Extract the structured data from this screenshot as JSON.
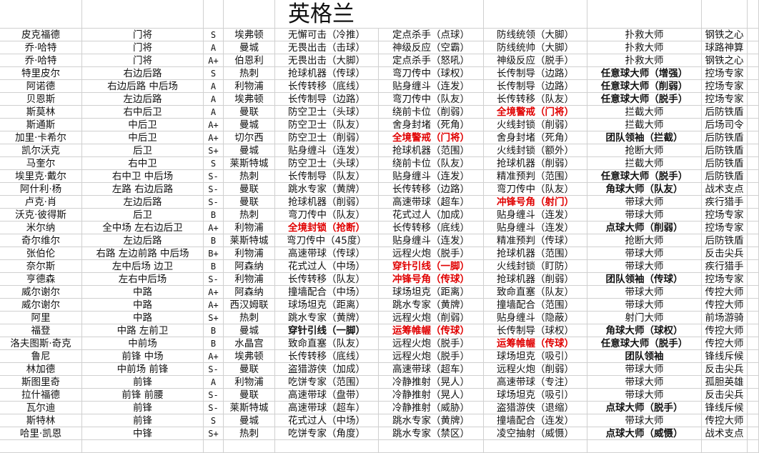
{
  "title": "英格兰",
  "colors": {
    "highlight_red": "#e00000",
    "grid": "#d0d0d0"
  },
  "rows": [
    {
      "name": "皮克福德",
      "position": "门将",
      "grade": "S",
      "club": "埃弗顿",
      "skills": [
        {
          "text": "无懈可击（冷推）",
          "style": ""
        },
        {
          "text": "定点杀手（点球）",
          "style": ""
        },
        {
          "text": "防线统领（大脚）",
          "style": ""
        },
        {
          "text": "扑救大师",
          "style": ""
        }
      ],
      "role": "钢铁之心"
    },
    {
      "name": "乔·哈特",
      "position": "门将",
      "grade": "A",
      "club": "曼城",
      "skills": [
        {
          "text": "无畏出击（击球）",
          "style": ""
        },
        {
          "text": "神级反应（空霸）",
          "style": ""
        },
        {
          "text": "防线统帅（大脚）",
          "style": ""
        },
        {
          "text": "扑救大师",
          "style": ""
        }
      ],
      "role": "球路神算"
    },
    {
      "name": "乔·哈特",
      "position": "门将",
      "grade": "A+",
      "club": "伯恩利",
      "skills": [
        {
          "text": "无畏出击（大脚）",
          "style": ""
        },
        {
          "text": "定点杀手（怒吼）",
          "style": ""
        },
        {
          "text": "神级反应（脱手）",
          "style": ""
        },
        {
          "text": "扑救大师",
          "style": ""
        }
      ],
      "role": "钢铁之心"
    },
    {
      "name": "特里皮尔",
      "position": "右边后路",
      "grade": "S",
      "club": "热刺",
      "skills": [
        {
          "text": "抢球机器（传球）",
          "style": ""
        },
        {
          "text": "弯刀传中（球权）",
          "style": ""
        },
        {
          "text": "长传制导（边路）",
          "style": ""
        },
        {
          "text": "任意球大师（增强）",
          "style": "b"
        }
      ],
      "role": "控场专家"
    },
    {
      "name": "阿诺德",
      "position": "右边后路 中后场",
      "grade": "A",
      "club": "利物浦",
      "skills": [
        {
          "text": "长传转移（底线）",
          "style": ""
        },
        {
          "text": "贴身缠斗（连发）",
          "style": ""
        },
        {
          "text": "长传制导（边路）",
          "style": ""
        },
        {
          "text": "任意球大师（削弱）",
          "style": "b"
        }
      ],
      "role": "控场专家"
    },
    {
      "name": "贝恩斯",
      "position": "左边后路",
      "grade": "A",
      "club": "埃弗顿",
      "skills": [
        {
          "text": "长传制导（边路）",
          "style": ""
        },
        {
          "text": "弯刀传中（队友）",
          "style": ""
        },
        {
          "text": "长传转移（队友）",
          "style": ""
        },
        {
          "text": "任意球大师（脱手）",
          "style": "b"
        }
      ],
      "role": "控场专家"
    },
    {
      "name": "斯莫林",
      "position": "右中后卫",
      "grade": "A",
      "club": "曼联",
      "skills": [
        {
          "text": "防空卫士（头球）",
          "style": ""
        },
        {
          "text": "绕前卡位（削弱）",
          "style": ""
        },
        {
          "text": "全境警戒（门将）",
          "style": "r"
        },
        {
          "text": "拦截大师",
          "style": ""
        }
      ],
      "role": "后防铁盾"
    },
    {
      "name": "斯通斯",
      "position": "中后卫",
      "grade": "A+",
      "club": "曼城",
      "skills": [
        {
          "text": "防空卫士（队友）",
          "style": ""
        },
        {
          "text": "舍身封堵（死角）",
          "style": ""
        },
        {
          "text": "火线封锁（削弱）",
          "style": ""
        },
        {
          "text": "拦截大师",
          "style": ""
        }
      ],
      "role": "后场司令"
    },
    {
      "name": "加里·卡希尔",
      "position": "中后卫",
      "grade": "A+",
      "club": "切尔西",
      "skills": [
        {
          "text": "防空卫士（削弱）",
          "style": ""
        },
        {
          "text": "全境警戒（门将）",
          "style": "r"
        },
        {
          "text": "舍身封堵（死角）",
          "style": ""
        },
        {
          "text": "团队领袖（拦截）",
          "style": "b"
        }
      ],
      "role": "后防铁盾"
    },
    {
      "name": "凯尔沃克",
      "position": "后卫",
      "grade": "S+",
      "club": "曼城",
      "skills": [
        {
          "text": "贴身缠斗（连发）",
          "style": ""
        },
        {
          "text": "抢球机器（范围）",
          "style": ""
        },
        {
          "text": "火线封锁（额外）",
          "style": ""
        },
        {
          "text": "抢断大师",
          "style": ""
        }
      ],
      "role": "后防铁盾"
    },
    {
      "name": "马奎尔",
      "position": "右中卫",
      "grade": "S",
      "club": "莱斯特城",
      "skills": [
        {
          "text": "防空卫士（头球）",
          "style": ""
        },
        {
          "text": "绕前卡位（队友）",
          "style": ""
        },
        {
          "text": "抢球机器（削弱）",
          "style": ""
        },
        {
          "text": "拦截大师",
          "style": ""
        }
      ],
      "role": "后防铁盾"
    },
    {
      "name": "埃里克·戴尔",
      "position": "右中卫 中后场",
      "grade": "S-",
      "club": "热刺",
      "skills": [
        {
          "text": "长传制导（队友）",
          "style": ""
        },
        {
          "text": "贴身缠斗（连发）",
          "style": ""
        },
        {
          "text": "精准预判（范围）",
          "style": ""
        },
        {
          "text": "任意球大师（脱手）",
          "style": "b"
        }
      ],
      "role": "后防铁盾"
    },
    {
      "name": "阿什利·杨",
      "position": "左路 右边后路",
      "grade": "S-",
      "club": "曼联",
      "skills": [
        {
          "text": "跳水专家（黄牌）",
          "style": ""
        },
        {
          "text": "长传转移（边路）",
          "style": ""
        },
        {
          "text": "弯刀传中（队友）",
          "style": ""
        },
        {
          "text": "角球大师（队友）",
          "style": "b"
        }
      ],
      "role": "战术支点"
    },
    {
      "name": "卢克·肖",
      "position": "左边后路",
      "grade": "S-",
      "club": "曼联",
      "skills": [
        {
          "text": "抢球机器（削弱）",
          "style": ""
        },
        {
          "text": "高速带球（超车）",
          "style": ""
        },
        {
          "text": "冲锋号角（射门）",
          "style": "r"
        },
        {
          "text": "带球大师",
          "style": ""
        }
      ],
      "role": "疾行猎手"
    },
    {
      "name": "沃克·彼得斯",
      "position": "后卫",
      "grade": "B",
      "club": "热刺",
      "skills": [
        {
          "text": "弯刀传中（队友）",
          "style": ""
        },
        {
          "text": "花式过人（加成）",
          "style": ""
        },
        {
          "text": "贴身缠斗（连发）",
          "style": ""
        },
        {
          "text": "带球大师",
          "style": ""
        }
      ],
      "role": "控场专家"
    },
    {
      "name": "米尔纳",
      "position": "全中场 左右边后卫",
      "grade": "A+",
      "club": "利物浦",
      "skills": [
        {
          "text": "全境封锁（抢断）",
          "style": "r"
        },
        {
          "text": "长传转移（底线）",
          "style": ""
        },
        {
          "text": "贴身缠斗（连发）",
          "style": ""
        },
        {
          "text": "点球大师（削弱）",
          "style": "b"
        }
      ],
      "role": "控场专家"
    },
    {
      "name": "奇尔维尔",
      "position": "左边后路",
      "grade": "B",
      "club": "莱斯特城",
      "skills": [
        {
          "text": "弯刀传中（45度）",
          "style": ""
        },
        {
          "text": "贴身缠斗（连发）",
          "style": ""
        },
        {
          "text": "精准预判（传球）",
          "style": ""
        },
        {
          "text": "抢断大师",
          "style": ""
        }
      ],
      "role": "后防铁盾"
    },
    {
      "name": "张伯伦",
      "position": "右路 左边前路 中后场",
      "grade": "B+",
      "club": "利物浦",
      "skills": [
        {
          "text": "高速带球（传球）",
          "style": ""
        },
        {
          "text": "远程火炮（脱手）",
          "style": ""
        },
        {
          "text": "抢球机器（范围）",
          "style": ""
        },
        {
          "text": "带球大师",
          "style": ""
        }
      ],
      "role": "反击尖兵"
    },
    {
      "name": "奈尔斯",
      "position": "左中后场 边卫",
      "grade": "B",
      "club": "阿森纳",
      "skills": [
        {
          "text": "花式过人（中场）",
          "style": ""
        },
        {
          "text": "穿针引线（一脚）",
          "style": "r"
        },
        {
          "text": "火线封锁（盯防）",
          "style": ""
        },
        {
          "text": "带球大师",
          "style": ""
        }
      ],
      "role": "疾行猎手"
    },
    {
      "name": "亨德森",
      "position": "左右中后场",
      "grade": "S-",
      "club": "利物浦",
      "skills": [
        {
          "text": "长传转移（队友）",
          "style": ""
        },
        {
          "text": "冲锋号角（传球）",
          "style": "r"
        },
        {
          "text": "抢球机器（削弱）",
          "style": ""
        },
        {
          "text": "团队领袖（传球）",
          "style": "b"
        }
      ],
      "role": "控场专家"
    },
    {
      "name": "威尔谢尔",
      "position": "中路",
      "grade": "A+",
      "club": "阿森纳",
      "skills": [
        {
          "text": "撞墙配合（中场）",
          "style": ""
        },
        {
          "text": "球场坦克（距离）",
          "style": ""
        },
        {
          "text": "致命直塞（队友）",
          "style": ""
        },
        {
          "text": "带球大师",
          "style": ""
        }
      ],
      "role": "传控大师"
    },
    {
      "name": "威尔谢尔",
      "position": "中路",
      "grade": "A+",
      "club": "西汉姆联",
      "skills": [
        {
          "text": "球场坦克（距离）",
          "style": ""
        },
        {
          "text": "跳水专家（黄牌）",
          "style": ""
        },
        {
          "text": "撞墙配合（范围）",
          "style": ""
        },
        {
          "text": "带球大师",
          "style": ""
        }
      ],
      "role": "传控大师"
    },
    {
      "name": "阿里",
      "position": "中路",
      "grade": "S+",
      "club": "热刺",
      "skills": [
        {
          "text": "跳水专家（黄牌）",
          "style": ""
        },
        {
          "text": "远程火炮（削弱）",
          "style": ""
        },
        {
          "text": "贴身缠斗（隐蔽）",
          "style": ""
        },
        {
          "text": "射门大师",
          "style": ""
        }
      ],
      "role": "前场游骑"
    },
    {
      "name": "福登",
      "position": "中路 左前卫",
      "grade": "B",
      "club": "曼城",
      "skills": [
        {
          "text": "穿针引线（一脚）",
          "style": "b"
        },
        {
          "text": "运筹帷幄（传球）",
          "style": "r"
        },
        {
          "text": "长传制导（球权）",
          "style": ""
        },
        {
          "text": "角球大师（球权）",
          "style": "b"
        }
      ],
      "role": "传控大师"
    },
    {
      "name": "洛夫图斯·奇克",
      "position": "中前场",
      "grade": "B",
      "club": "水晶宫",
      "skills": [
        {
          "text": "致命直塞（队友）",
          "style": ""
        },
        {
          "text": "远程火炮（脱手）",
          "style": ""
        },
        {
          "text": "运筹帷幄（传球）",
          "style": "r"
        },
        {
          "text": "任意球大师（脱手）",
          "style": "b"
        }
      ],
      "role": "传控大师"
    },
    {
      "name": "鲁尼",
      "position": "前锋 中场",
      "grade": "A+",
      "club": "埃弗顿",
      "skills": [
        {
          "text": "长传转移（底线）",
          "style": ""
        },
        {
          "text": "远程火炮（脱手）",
          "style": ""
        },
        {
          "text": "球场坦克（吸引）",
          "style": ""
        },
        {
          "text": "团队领袖",
          "style": "b"
        }
      ],
      "role": "锋线斥候"
    },
    {
      "name": "林加德",
      "position": "中前场 前锋",
      "grade": "S-",
      "club": "曼联",
      "skills": [
        {
          "text": "盗猎游侠（加成）",
          "style": ""
        },
        {
          "text": "高速带球（超车）",
          "style": ""
        },
        {
          "text": "远程火炮（削弱）",
          "style": ""
        },
        {
          "text": "带球大师",
          "style": ""
        }
      ],
      "role": "反击尖兵"
    },
    {
      "name": "斯图里奇",
      "position": "前锋",
      "grade": "A",
      "club": "利物浦",
      "skills": [
        {
          "text": "吃饼专家（范围）",
          "style": ""
        },
        {
          "text": "冷静推射（晃人）",
          "style": ""
        },
        {
          "text": "高速带球（专注）",
          "style": ""
        },
        {
          "text": "带球大师",
          "style": ""
        }
      ],
      "role": "孤胆英雄"
    },
    {
      "name": "拉什福德",
      "position": "前锋 前腰",
      "grade": "S-",
      "club": "曼联",
      "skills": [
        {
          "text": "高速带球（盘带）",
          "style": ""
        },
        {
          "text": "冷静推射（晃人）",
          "style": ""
        },
        {
          "text": "球场坦克（吸引）",
          "style": ""
        },
        {
          "text": "带球大师",
          "style": ""
        }
      ],
      "role": "反击尖兵"
    },
    {
      "name": "瓦尔迪",
      "position": "前锋",
      "grade": "S-",
      "club": "莱斯特城",
      "skills": [
        {
          "text": "高速带球（超车）",
          "style": ""
        },
        {
          "text": "冷静推射（威胁）",
          "style": ""
        },
        {
          "text": "盗猎游侠（退缩）",
          "style": ""
        },
        {
          "text": "点球大师（脱手）",
          "style": "b"
        }
      ],
      "role": "锋线斥候"
    },
    {
      "name": "斯特林",
      "position": "前锋",
      "grade": "S",
      "club": "曼城",
      "skills": [
        {
          "text": "花式过人（中场）",
          "style": ""
        },
        {
          "text": "跳水专家（黄牌）",
          "style": ""
        },
        {
          "text": "撞墙配合（连发）",
          "style": ""
        },
        {
          "text": "带球大师",
          "style": ""
        }
      ],
      "role": "传控大师"
    },
    {
      "name": "哈里·凯恩",
      "position": "中锋",
      "grade": "S+",
      "club": "热刺",
      "skills": [
        {
          "text": "吃饼专家（角度）",
          "style": ""
        },
        {
          "text": "跳水专家（禁区）",
          "style": ""
        },
        {
          "text": "凌空抽射（威慑）",
          "style": ""
        },
        {
          "text": "点球大师（威慑）",
          "style": "b"
        }
      ],
      "role": "战术支点"
    }
  ]
}
